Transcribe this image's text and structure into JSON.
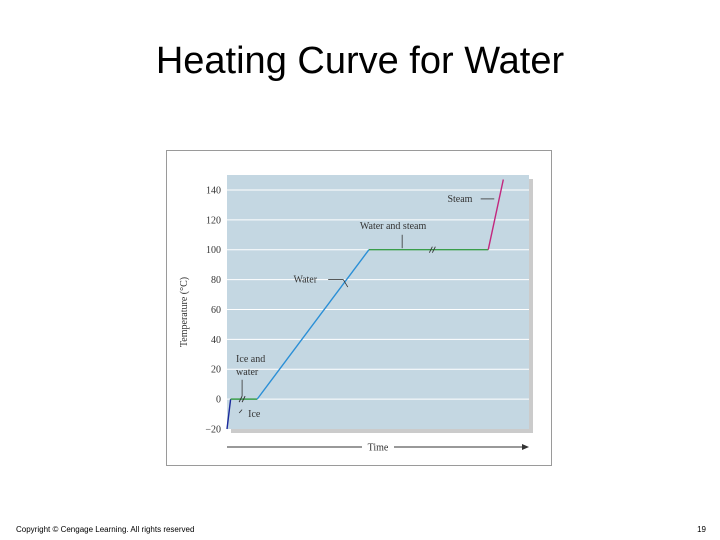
{
  "slide": {
    "title": "Heating Curve for Water",
    "copyright": "Copyright © Cengage Learning. All rights reserved",
    "page_number": "19"
  },
  "chart_data": {
    "type": "line",
    "title": "",
    "xlabel": "Time",
    "ylabel": "Temperature (°C)",
    "ylim": [
      -20,
      150
    ],
    "yticks": [
      -20,
      0,
      20,
      40,
      60,
      80,
      100,
      120,
      140
    ],
    "grid": true,
    "plot_bg": "#c4d7e2",
    "grid_color": "#ffffff",
    "axis_break_symbol": "//",
    "series": [
      {
        "name": "Ice",
        "color": "#1b2a9c",
        "x": [
          0,
          0.012
        ],
        "y": [
          -20,
          0
        ]
      },
      {
        "name": "Ice and water",
        "color": "#3a9e4a",
        "x": [
          0.012,
          0.1
        ],
        "y": [
          0,
          0
        ]
      },
      {
        "name": "Water",
        "color": "#2b8fd6",
        "x": [
          0.1,
          0.47
        ],
        "y": [
          0,
          100
        ]
      },
      {
        "name": "Water and steam",
        "color": "#3a9e4a",
        "x": [
          0.47,
          0.865
        ],
        "y": [
          100,
          100
        ]
      },
      {
        "name": "Steam",
        "color": "#c2277e",
        "x": [
          0.865,
          0.915
        ],
        "y": [
          100,
          147
        ]
      }
    ],
    "annotations": [
      {
        "text": "Ice",
        "x": 0.07,
        "y": -12
      },
      {
        "text": "Ice and",
        "x": 0.03,
        "y": 25
      },
      {
        "text": "water",
        "x": 0.03,
        "y": 16
      },
      {
        "text": "Water",
        "x": 0.22,
        "y": 78
      },
      {
        "text": "Water and steam",
        "x": 0.44,
        "y": 114
      },
      {
        "text": "Steam",
        "x": 0.73,
        "y": 132
      }
    ]
  }
}
